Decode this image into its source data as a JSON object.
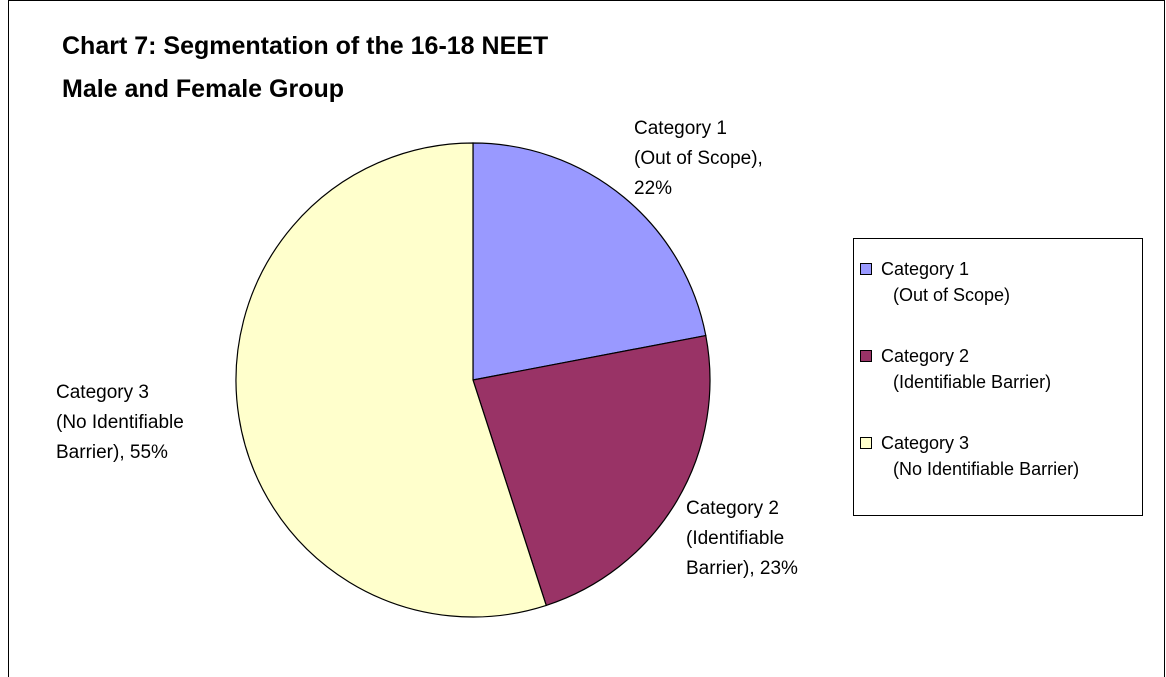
{
  "chart_data": {
    "type": "pie",
    "title": "Chart 7: Segmentation of the 16-18 NEET Male and Female Group",
    "categories": [
      "Category 1 (Out of Scope)",
      "Category 2 (Identifiable Barrier)",
      "Category 3 (No Identifiable Barrier)"
    ],
    "values": [
      22,
      23,
      55
    ],
    "value_labels": [
      "Category 1 (Out of Scope), 22%",
      "Category 2 (Identifiable Barrier), 23%",
      "Category 3 (No Identifiable Barrier), 55%"
    ],
    "colors": [
      "#9999ff",
      "#993366",
      "#ffffcc"
    ],
    "legend": "right"
  }
}
